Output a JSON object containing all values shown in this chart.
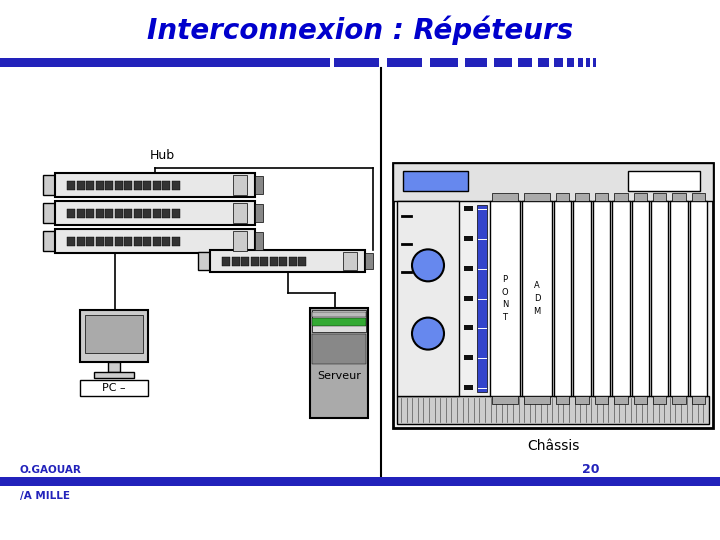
{
  "title": "Interconnexion : Répéteurs",
  "title_color": "#0000CC",
  "bg_color": "#FFFFFF",
  "blue": "#2222BB",
  "light_blue": "#6688EE",
  "hub_label": "Hub",
  "chassis_label": "Châssis",
  "server_label": "Serveur",
  "pc_label": "PC –",
  "footer_left1": "O.GAOUAR",
  "footer_left2": "/A MILLE",
  "footer_num": "20"
}
